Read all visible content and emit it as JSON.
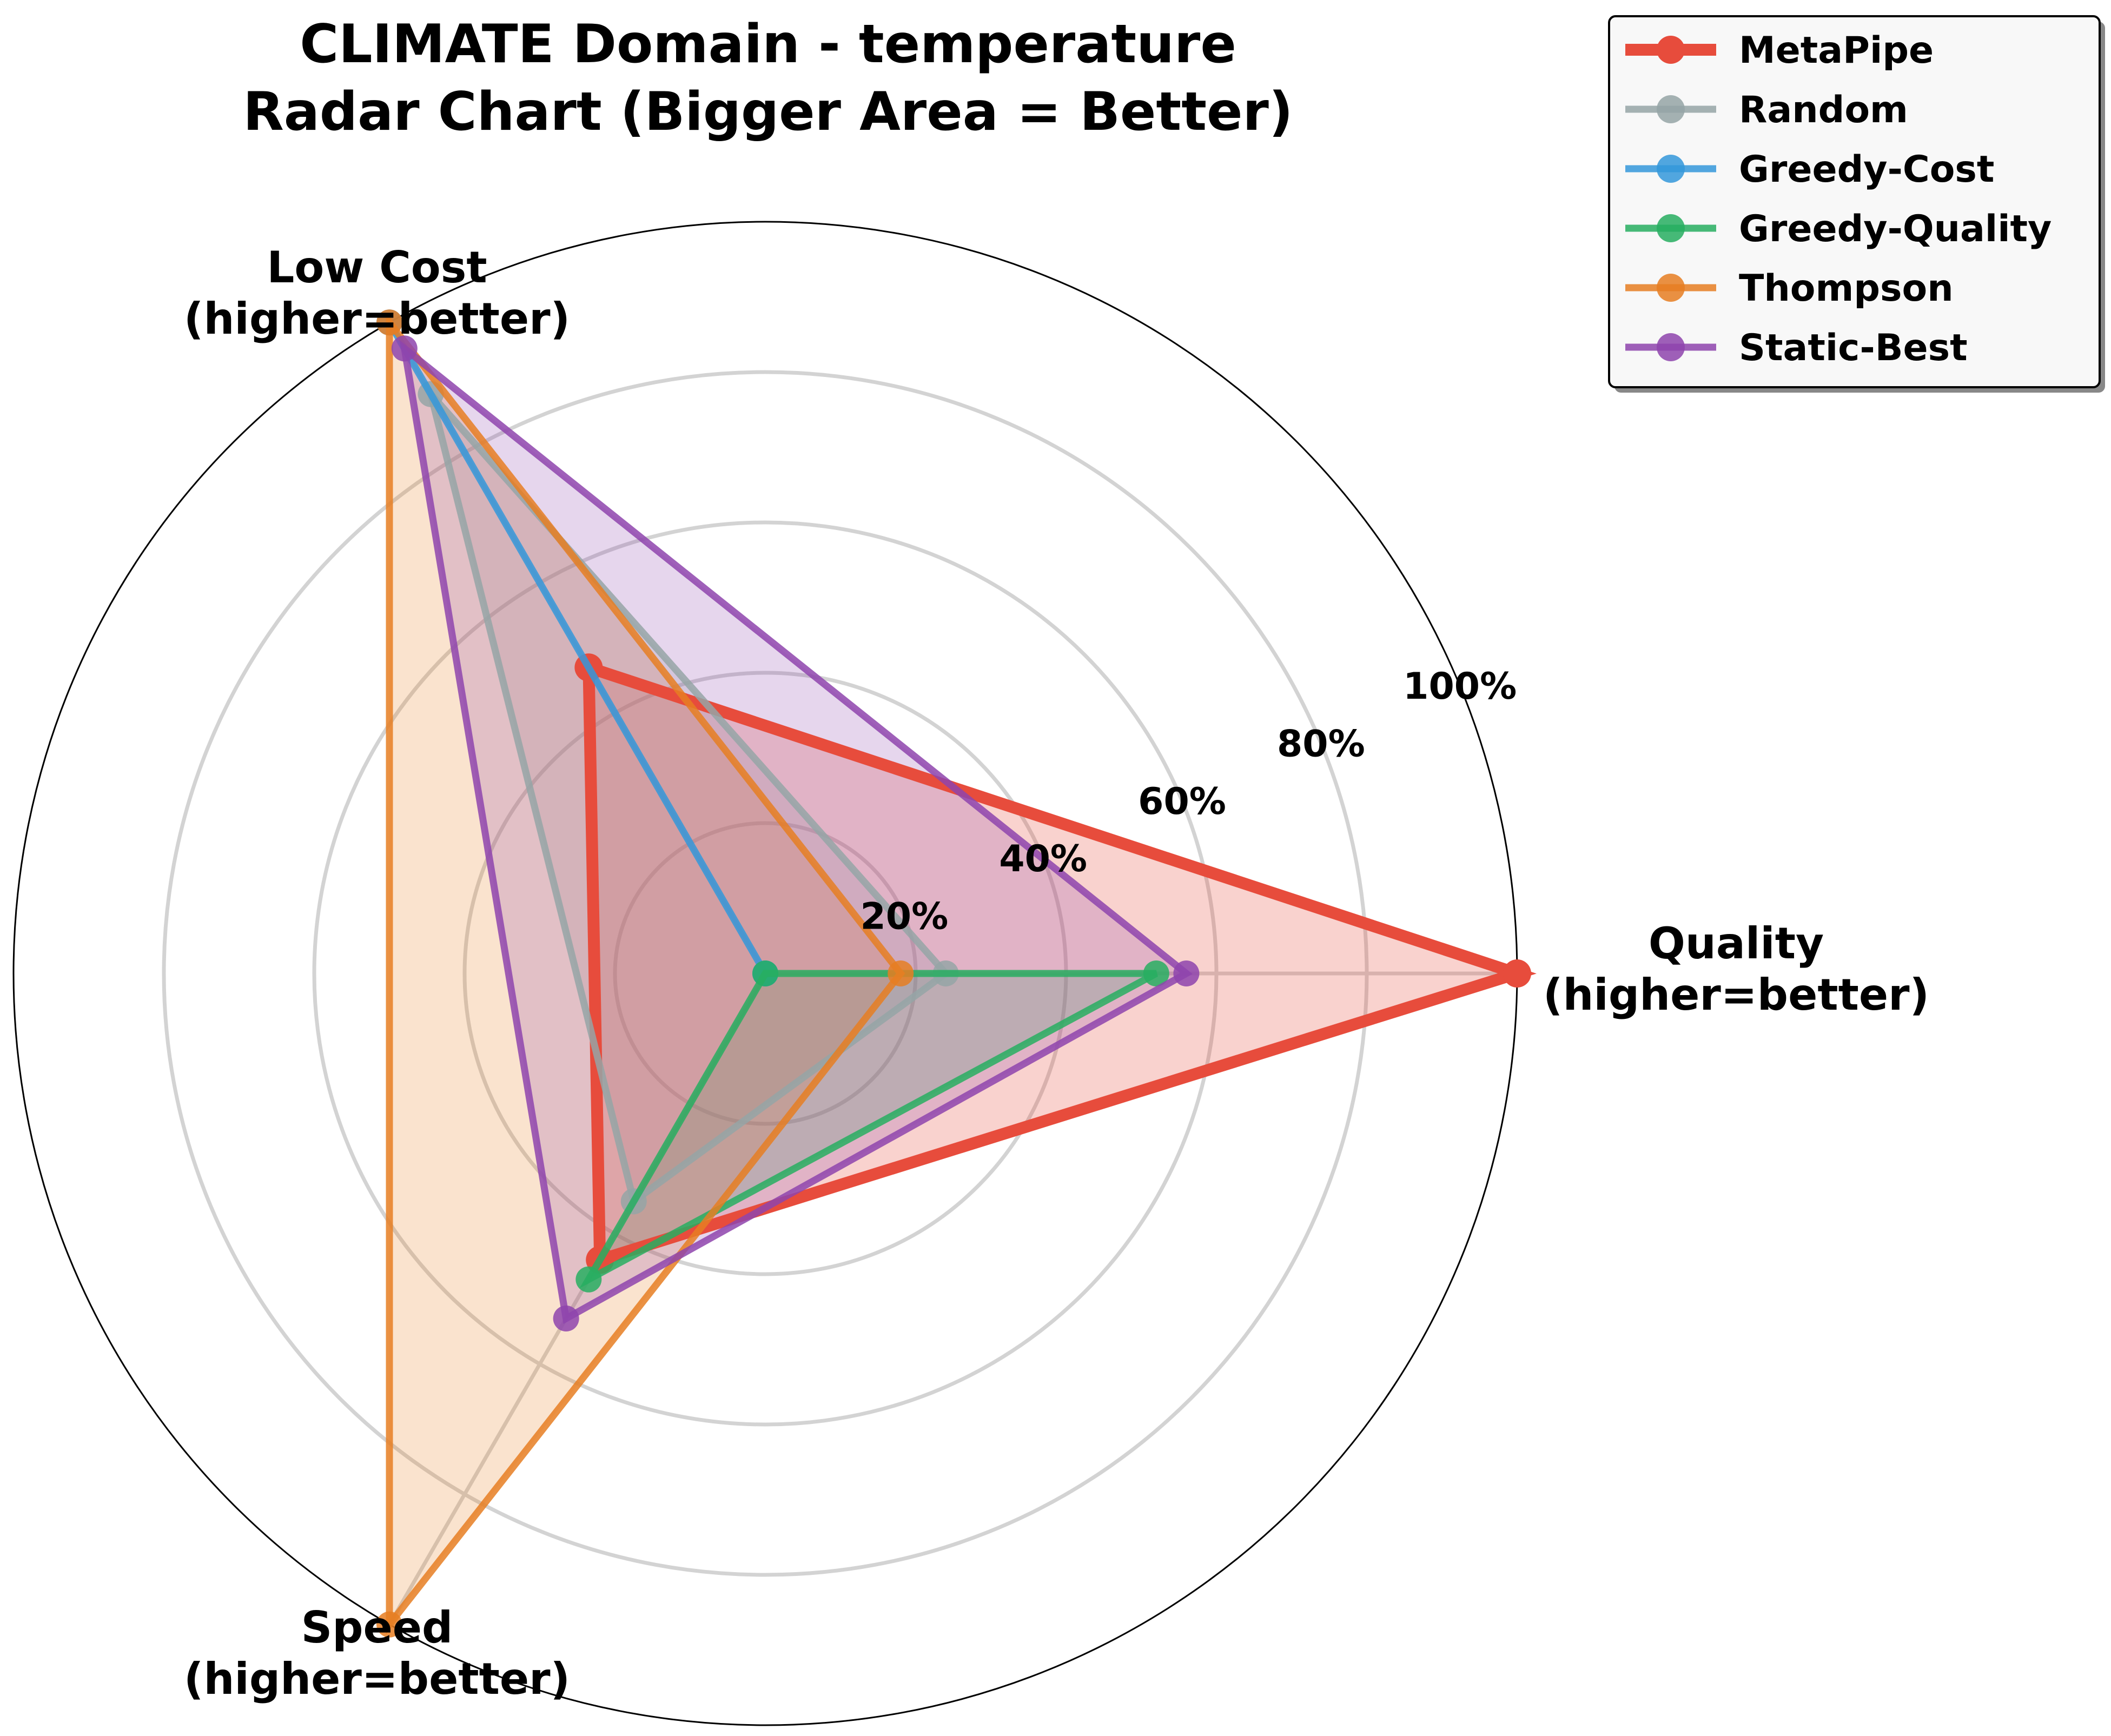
{
  "chart_data": {
    "type": "radar",
    "title": "CLIMATE Domain - temperature\nRadar Chart (Bigger Area = Better)",
    "axes": [
      "Quality\n(higher=better)",
      "Low Cost\n(higher=better)",
      "Speed\n(higher=better)"
    ],
    "radial_ticks": [
      20,
      40,
      60,
      80,
      100
    ],
    "radial_tick_labels": [
      "20%",
      "40%",
      "60%",
      "80%",
      "100%"
    ],
    "rlim": [
      0,
      100
    ],
    "grid": true,
    "legend_position": "top-right",
    "series": [
      {
        "name": "MetaPipe",
        "color": "#e74c3c",
        "values": [
          100,
          47,
          44
        ]
      },
      {
        "name": "Random",
        "color": "#95a5a6",
        "values": [
          24,
          89,
          35
        ]
      },
      {
        "name": "Greedy-Cost",
        "color": "#3498db",
        "values": [
          0,
          100,
          0
        ]
      },
      {
        "name": "Greedy-Quality",
        "color": "#27ae60",
        "values": [
          52,
          0,
          47
        ]
      },
      {
        "name": "Thompson",
        "color": "#e67e22",
        "values": [
          18,
          100,
          100
        ]
      },
      {
        "name": "Static-Best",
        "color": "#8e44ad",
        "values": [
          56,
          96,
          53
        ]
      }
    ]
  }
}
